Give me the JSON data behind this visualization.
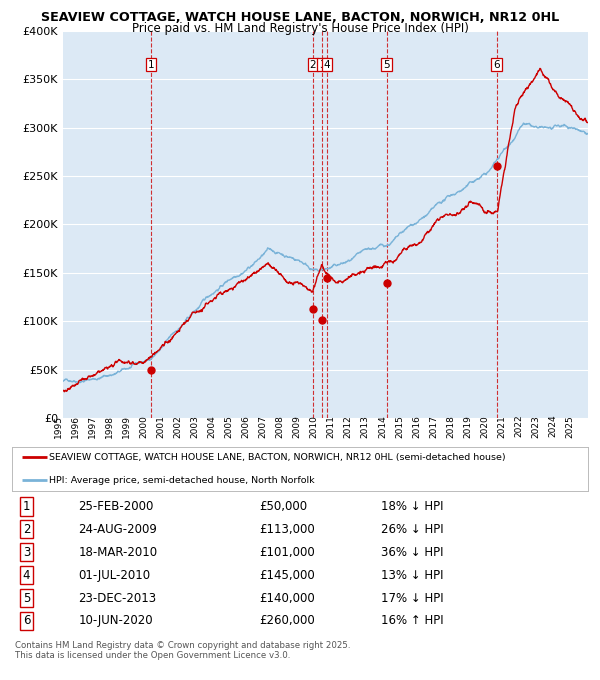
{
  "title1": "SEAVIEW COTTAGE, WATCH HOUSE LANE, BACTON, NORWICH, NR12 0HL",
  "title2": "Price paid vs. HM Land Registry's House Price Index (HPI)",
  "bg_color": "#dce9f5",
  "hpi_color": "#7ab3d8",
  "price_color": "#cc0000",
  "ylim": [
    0,
    400000
  ],
  "yticks": [
    0,
    50000,
    100000,
    150000,
    200000,
    250000,
    300000,
    350000,
    400000
  ],
  "xlim_start": 1995.0,
  "xlim_end": 2025.8,
  "transactions": [
    {
      "num": 1,
      "date": "25-FEB-2000",
      "year": 2000.15,
      "price": 50000,
      "hpi_rel": "18% ↓ HPI"
    },
    {
      "num": 2,
      "date": "24-AUG-2009",
      "year": 2009.65,
      "price": 113000,
      "hpi_rel": "26% ↓ HPI"
    },
    {
      "num": 3,
      "date": "18-MAR-2010",
      "year": 2010.22,
      "price": 101000,
      "hpi_rel": "36% ↓ HPI"
    },
    {
      "num": 4,
      "date": "01-JUL-2010",
      "year": 2010.5,
      "price": 145000,
      "hpi_rel": "13% ↓ HPI"
    },
    {
      "num": 5,
      "date": "23-DEC-2013",
      "year": 2013.98,
      "price": 140000,
      "hpi_rel": "17% ↓ HPI"
    },
    {
      "num": 6,
      "date": "10-JUN-2020",
      "year": 2020.44,
      "price": 260000,
      "hpi_rel": "16% ↑ HPI"
    }
  ],
  "legend_label_price": "SEAVIEW COTTAGE, WATCH HOUSE LANE, BACTON, NORWICH, NR12 0HL (semi-detached house)",
  "legend_label_hpi": "HPI: Average price, semi-detached house, North Norfolk",
  "footer1": "Contains HM Land Registry data © Crown copyright and database right 2025.",
  "footer2": "This data is licensed under the Open Government Licence v3.0."
}
